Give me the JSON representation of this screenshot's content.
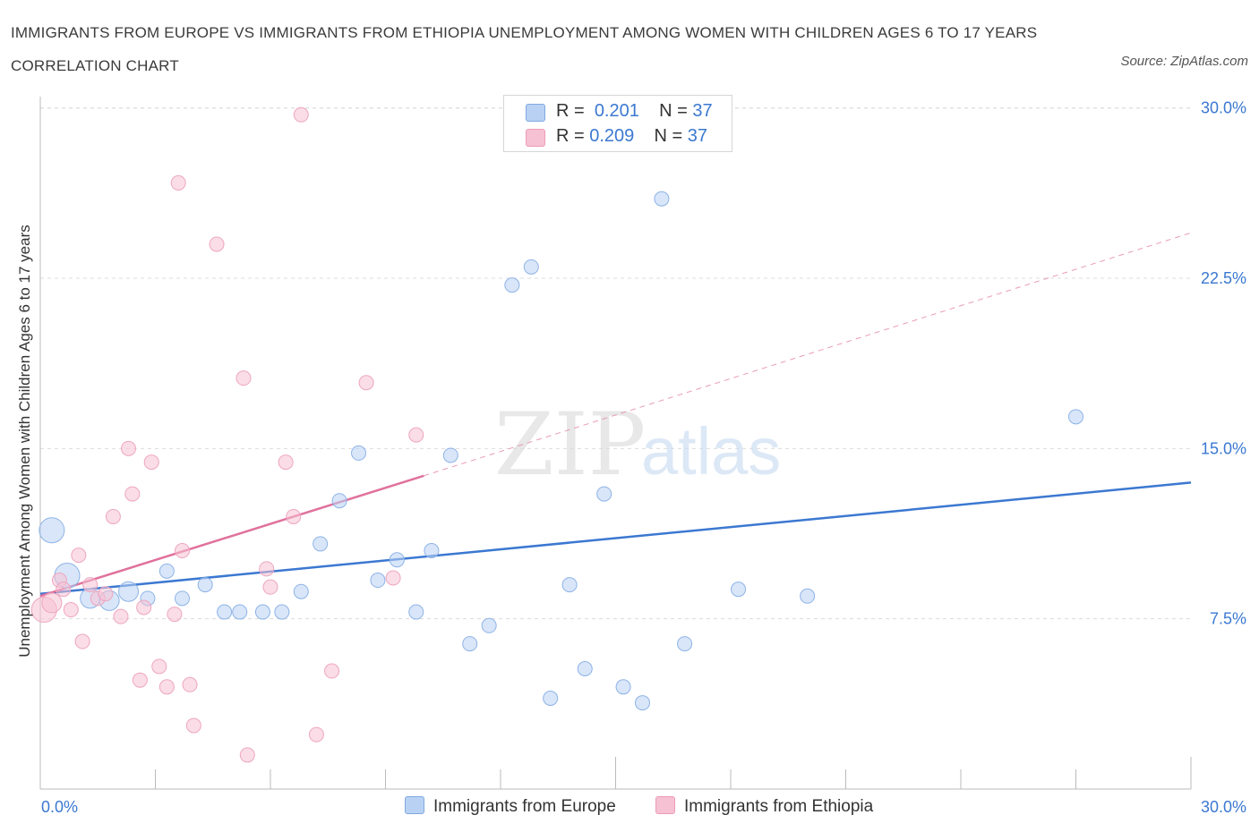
{
  "title": "IMMIGRANTS FROM EUROPE VS IMMIGRANTS FROM ETHIOPIA UNEMPLOYMENT AMONG WOMEN WITH CHILDREN AGES 6 TO 17 YEARS CORRELATION CHART",
  "source": "Source: ZipAtlas.com",
  "watermark": {
    "zip": "ZIP",
    "atlas": "atlas"
  },
  "legend": {
    "europe": {
      "r_label": "R =",
      "r_value": "0.201",
      "n_label": "N =",
      "n_value": "37"
    },
    "ethiopia": {
      "r_label": "R =",
      "r_value": "0.209",
      "n_label": "N =",
      "n_value": "37"
    }
  },
  "colors": {
    "europe": "#3b78d1",
    "europe_fill": "#b9d2f4",
    "ethiopia": "#e0719c",
    "ethiopia_fill": "#f6c1d3"
  },
  "chart_data": {
    "type": "scatter",
    "xlabel": "",
    "ylabel": "Unemployment Among Women with Children Ages 6 to 17 years",
    "x_tick_labels": [
      "0.0%",
      "30.0%"
    ],
    "y_tick_labels": [
      "7.5%",
      "15.0%",
      "22.5%",
      "30.0%"
    ],
    "y_ticks": [
      7.5,
      15.0,
      22.5,
      30.0
    ],
    "xlim": [
      0,
      30
    ],
    "ylim": [
      0,
      30.5
    ],
    "grid": true,
    "legend_position": "top-center",
    "series": [
      {
        "name": "Immigrants from Europe",
        "color": "#3b78d1",
        "points": [
          {
            "x": 0.3,
            "y": 11.4,
            "s": 3
          },
          {
            "x": 0.7,
            "y": 9.4,
            "s": 3
          },
          {
            "x": 1.3,
            "y": 8.4,
            "s": 2
          },
          {
            "x": 1.8,
            "y": 8.3,
            "s": 2
          },
          {
            "x": 2.3,
            "y": 8.7,
            "s": 2
          },
          {
            "x": 2.8,
            "y": 8.4,
            "s": 1
          },
          {
            "x": 3.3,
            "y": 9.6,
            "s": 1
          },
          {
            "x": 3.7,
            "y": 8.4,
            "s": 1
          },
          {
            "x": 4.3,
            "y": 9.0,
            "s": 1
          },
          {
            "x": 4.8,
            "y": 7.8,
            "s": 1
          },
          {
            "x": 5.2,
            "y": 7.8,
            "s": 1
          },
          {
            "x": 5.8,
            "y": 7.8,
            "s": 1
          },
          {
            "x": 6.3,
            "y": 7.8,
            "s": 1
          },
          {
            "x": 6.8,
            "y": 8.7,
            "s": 1
          },
          {
            "x": 7.3,
            "y": 10.8,
            "s": 1
          },
          {
            "x": 7.8,
            "y": 12.7,
            "s": 1
          },
          {
            "x": 8.3,
            "y": 14.8,
            "s": 1
          },
          {
            "x": 8.8,
            "y": 9.2,
            "s": 1
          },
          {
            "x": 9.3,
            "y": 10.1,
            "s": 1
          },
          {
            "x": 9.8,
            "y": 7.8,
            "s": 1
          },
          {
            "x": 10.2,
            "y": 10.5,
            "s": 1
          },
          {
            "x": 10.7,
            "y": 14.7,
            "s": 1
          },
          {
            "x": 11.2,
            "y": 6.4,
            "s": 1
          },
          {
            "x": 11.7,
            "y": 7.2,
            "s": 1
          },
          {
            "x": 12.3,
            "y": 22.2,
            "s": 1
          },
          {
            "x": 12.8,
            "y": 23.0,
            "s": 1
          },
          {
            "x": 13.3,
            "y": 4.0,
            "s": 1
          },
          {
            "x": 13.8,
            "y": 9.0,
            "s": 1
          },
          {
            "x": 14.2,
            "y": 5.3,
            "s": 1
          },
          {
            "x": 14.7,
            "y": 13.0,
            "s": 1
          },
          {
            "x": 15.2,
            "y": 4.5,
            "s": 1
          },
          {
            "x": 15.7,
            "y": 3.8,
            "s": 1
          },
          {
            "x": 16.2,
            "y": 26.0,
            "s": 1
          },
          {
            "x": 16.8,
            "y": 6.4,
            "s": 1
          },
          {
            "x": 18.2,
            "y": 8.8,
            "s": 1
          },
          {
            "x": 20.0,
            "y": 8.5,
            "s": 1
          },
          {
            "x": 27.0,
            "y": 16.4,
            "s": 1
          }
        ],
        "trend": {
          "x": [
            0,
            30
          ],
          "y": [
            8.6,
            13.5
          ]
        }
      },
      {
        "name": "Immigrants from Ethiopia",
        "color": "#e0719c",
        "points": [
          {
            "x": 0.1,
            "y": 7.9,
            "s": 3
          },
          {
            "x": 0.3,
            "y": 8.2,
            "s": 2
          },
          {
            "x": 0.5,
            "y": 9.2,
            "s": 1
          },
          {
            "x": 0.6,
            "y": 8.8,
            "s": 1
          },
          {
            "x": 0.8,
            "y": 7.9,
            "s": 1
          },
          {
            "x": 1.0,
            "y": 10.3,
            "s": 1
          },
          {
            "x": 1.1,
            "y": 6.5,
            "s": 1
          },
          {
            "x": 1.3,
            "y": 9.0,
            "s": 1
          },
          {
            "x": 1.5,
            "y": 8.4,
            "s": 1
          },
          {
            "x": 1.7,
            "y": 8.6,
            "s": 1
          },
          {
            "x": 1.9,
            "y": 12.0,
            "s": 1
          },
          {
            "x": 2.1,
            "y": 7.6,
            "s": 1
          },
          {
            "x": 2.3,
            "y": 15.0,
            "s": 1
          },
          {
            "x": 2.4,
            "y": 13.0,
            "s": 1
          },
          {
            "x": 2.6,
            "y": 4.8,
            "s": 1
          },
          {
            "x": 2.7,
            "y": 8.0,
            "s": 1
          },
          {
            "x": 2.9,
            "y": 14.4,
            "s": 1
          },
          {
            "x": 3.1,
            "y": 5.4,
            "s": 1
          },
          {
            "x": 3.3,
            "y": 4.5,
            "s": 1
          },
          {
            "x": 3.5,
            "y": 7.7,
            "s": 1
          },
          {
            "x": 3.6,
            "y": 26.7,
            "s": 1
          },
          {
            "x": 3.7,
            "y": 10.5,
            "s": 1
          },
          {
            "x": 3.9,
            "y": 4.6,
            "s": 1
          },
          {
            "x": 4.0,
            "y": 2.8,
            "s": 1
          },
          {
            "x": 4.6,
            "y": 24.0,
            "s": 1
          },
          {
            "x": 5.3,
            "y": 18.1,
            "s": 1
          },
          {
            "x": 5.4,
            "y": 1.5,
            "s": 1
          },
          {
            "x": 5.9,
            "y": 9.7,
            "s": 1
          },
          {
            "x": 6.0,
            "y": 8.9,
            "s": 1
          },
          {
            "x": 6.4,
            "y": 14.4,
            "s": 1
          },
          {
            "x": 6.6,
            "y": 12.0,
            "s": 1
          },
          {
            "x": 6.8,
            "y": 29.7,
            "s": 1
          },
          {
            "x": 7.2,
            "y": 2.4,
            "s": 1
          },
          {
            "x": 7.6,
            "y": 5.2,
            "s": 1
          },
          {
            "x": 8.5,
            "y": 17.9,
            "s": 1
          },
          {
            "x": 9.2,
            "y": 9.3,
            "s": 1
          },
          {
            "x": 9.8,
            "y": 15.6,
            "s": 1
          }
        ],
        "trend": {
          "x": [
            0,
            10
          ],
          "y": [
            8.5,
            13.8
          ]
        },
        "trend_extension": {
          "x": [
            10,
            30
          ],
          "y": [
            13.8,
            24.5
          ]
        }
      }
    ]
  },
  "bottom_legend": {
    "europe": "Immigrants from Europe",
    "ethiopia": "Immigrants from Ethiopia"
  }
}
